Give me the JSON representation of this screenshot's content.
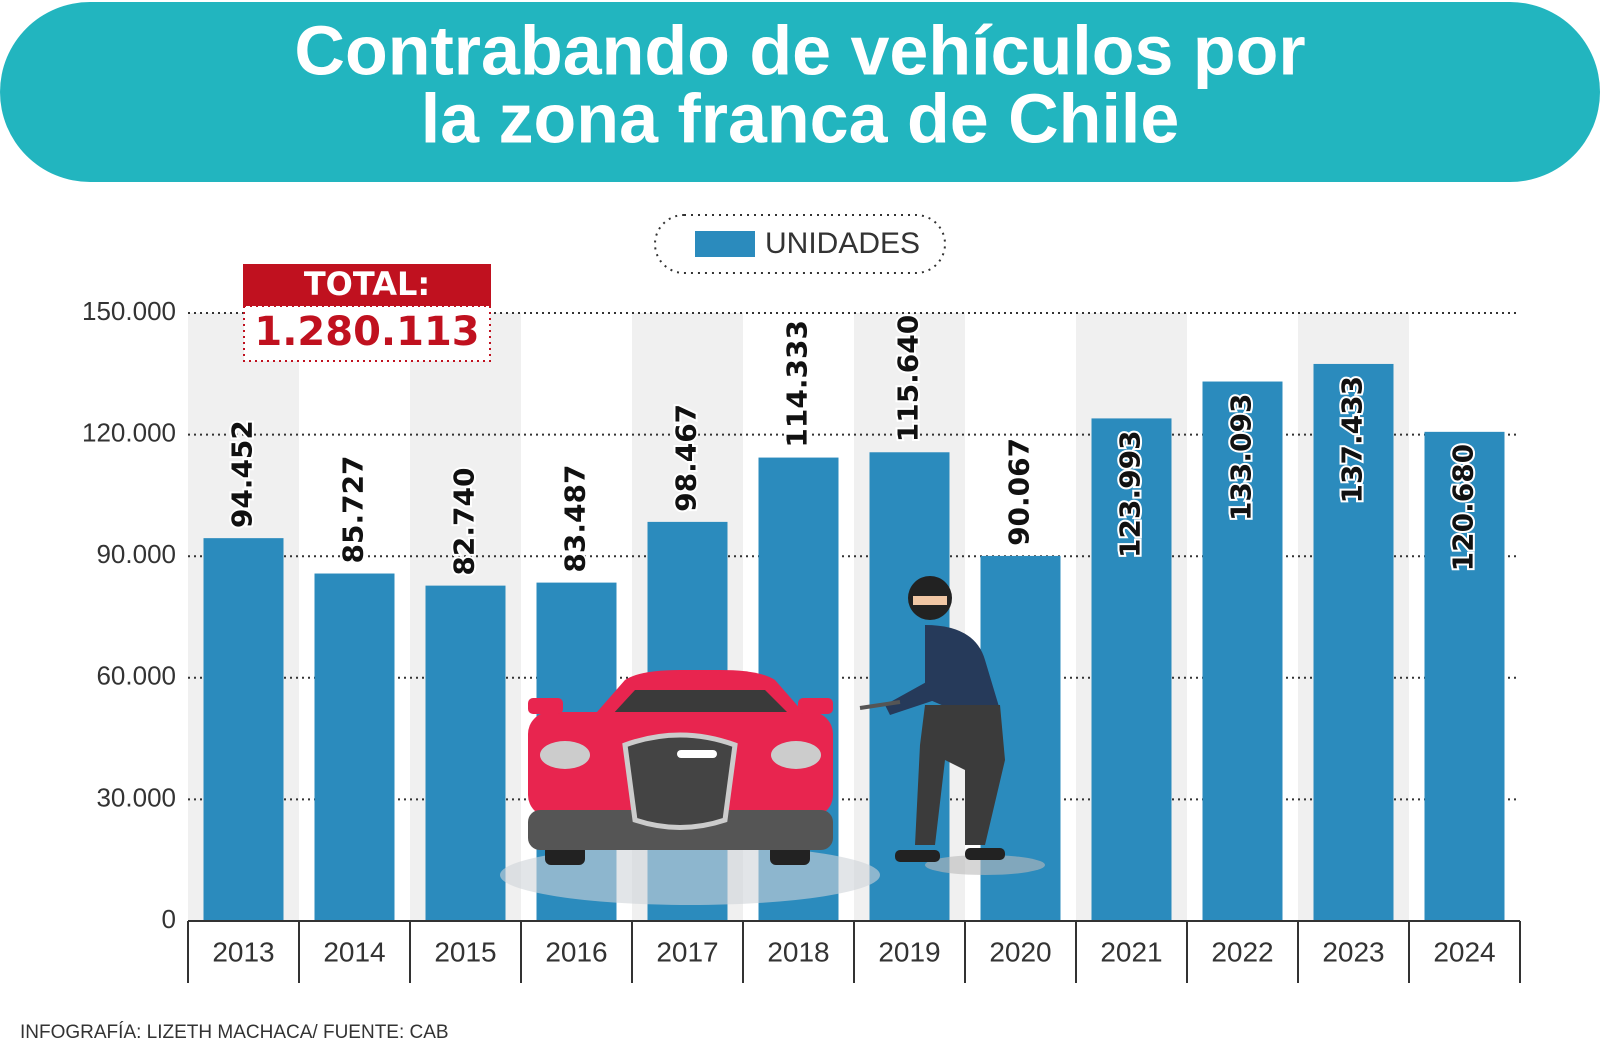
{
  "chart_data": {
    "type": "bar",
    "title": [
      "Contrabando de vehículos por",
      "la zona franca de Chile"
    ],
    "categories": [
      "2013",
      "2014",
      "2015",
      "2016",
      "2017",
      "2018",
      "2019",
      "2020",
      "2021",
      "2022",
      "2023",
      "2024"
    ],
    "series": [
      {
        "name": "UNIDADES",
        "color": "#2b8bbd",
        "values": [
          94452,
          85727,
          82740,
          83487,
          98467,
          114333,
          115640,
          90067,
          123993,
          133093,
          137433,
          120680
        ],
        "value_labels": [
          "94.452",
          "85.727",
          "82.740",
          "83.487",
          "98.467",
          "114.333",
          "115.640",
          "90.067",
          "123.993",
          "133.093",
          "137.433",
          "120.680"
        ]
      }
    ],
    "ylim": [
      0,
      150000
    ],
    "yticks": [
      0,
      {
        "value": 30000,
        "label": "30.000"
      },
      {
        "value": 60000,
        "label": "60.000"
      },
      {
        "value": 90000,
        "label": "90.000"
      },
      {
        "value": 120000,
        "label": "120.000"
      },
      {
        "value": 150000,
        "label": "150.000"
      }
    ],
    "grid": true,
    "legend": "top",
    "annotations": {
      "total_label": "TOTAL:",
      "total": "1.280.113"
    },
    "source": "INFOGRAFÍA: LIZETH MACHACA/ FUENTE: CAB"
  }
}
